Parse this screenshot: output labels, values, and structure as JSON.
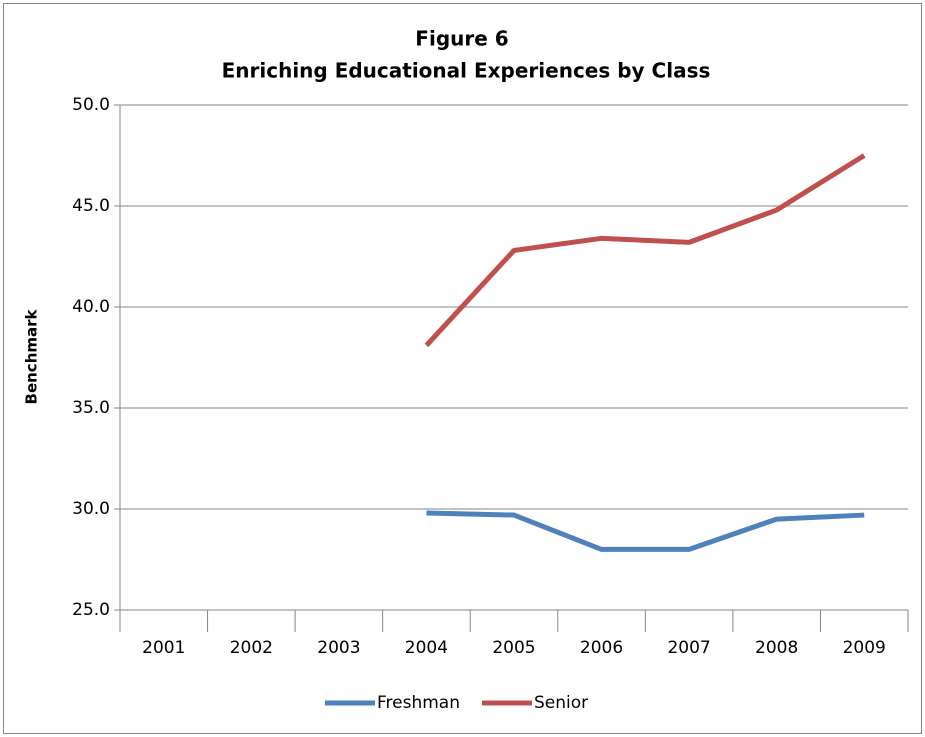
{
  "chart_data": {
    "type": "line",
    "title": "Figure 6",
    "subtitle": "Enriching Educational Experiences by Class",
    "y_label": "Benchmark",
    "categories": [
      "2001",
      "2002",
      "2003",
      "2004",
      "2005",
      "2006",
      "2007",
      "2008",
      "2009"
    ],
    "series": [
      {
        "name": "Freshman",
        "color": "#4f81bd",
        "values": [
          null,
          null,
          null,
          29.8,
          29.7,
          28.0,
          28.0,
          29.5,
          29.7
        ]
      },
      {
        "name": "Senior",
        "color": "#c0504d",
        "values": [
          null,
          null,
          null,
          38.1,
          42.8,
          43.4,
          43.2,
          44.8,
          47.5
        ]
      }
    ],
    "ylim": [
      25,
      50
    ],
    "yticks": [
      {
        "value": 25,
        "label": "25.0"
      },
      {
        "value": 30,
        "label": "30.0"
      },
      {
        "value": 35,
        "label": "35.0"
      },
      {
        "value": 40,
        "label": "40.0"
      },
      {
        "value": 45,
        "label": "45.0"
      },
      {
        "value": 50,
        "label": "50.0"
      }
    ],
    "grid": true,
    "legend": "bottom"
  }
}
